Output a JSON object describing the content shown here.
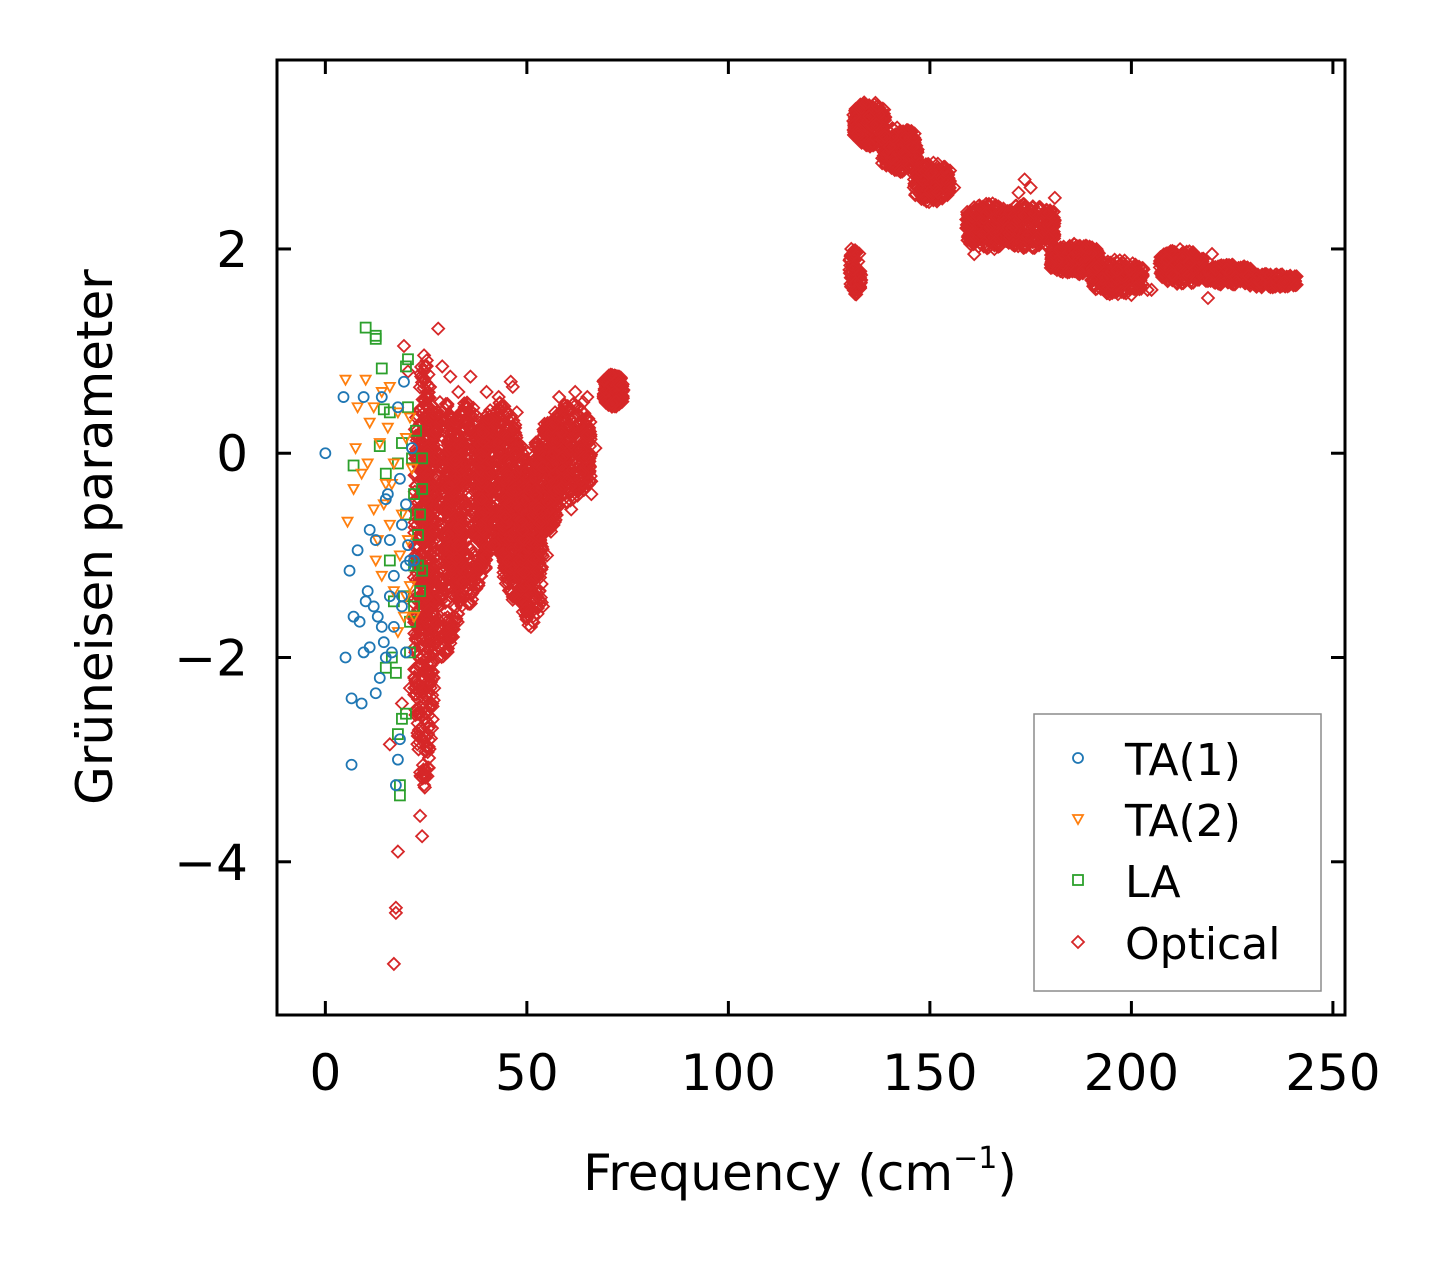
{
  "chart_data": {
    "type": "scatter",
    "title": "",
    "xlabel": "Frequency (cm",
    "xlabel_superscript": "−1",
    "xlabel_suffix": ")",
    "ylabel": "Grüneisen parameter",
    "xlim": [
      -12,
      253
    ],
    "ylim": [
      -5.5,
      3.85
    ],
    "xticks": [
      0,
      50,
      100,
      150,
      200,
      250
    ],
    "xtick_labels": [
      "0",
      "50",
      "100",
      "150",
      "200",
      "250"
    ],
    "yticks": [
      -4,
      -2,
      0,
      2
    ],
    "ytick_labels": [
      "−4",
      "−2",
      "0",
      "2"
    ],
    "grid": false,
    "legend_position": "lower right",
    "series": [
      {
        "name": "TA(1)",
        "marker": "circle",
        "color": "#1f77b4",
        "points": [
          [
            0,
            0
          ],
          [
            4.5,
            0.55
          ],
          [
            6,
            -1.15
          ],
          [
            6.5,
            -2.4
          ],
          [
            6.5,
            -3.05
          ],
          [
            7,
            -1.6
          ],
          [
            8,
            -0.95
          ],
          [
            8.5,
            -1.65
          ],
          [
            9,
            -2.45
          ],
          [
            9.5,
            0.55
          ],
          [
            9.5,
            -1.95
          ],
          [
            10,
            -1.45
          ],
          [
            10.5,
            -1.35
          ],
          [
            11,
            -1.9
          ],
          [
            11,
            -0.75
          ],
          [
            12,
            -1.5
          ],
          [
            12.5,
            -2.35
          ],
          [
            12.5,
            -0.85
          ],
          [
            13,
            -1.6
          ],
          [
            13.5,
            -2.2
          ],
          [
            14,
            -1.7
          ],
          [
            14,
            0.55
          ],
          [
            15,
            -2.0
          ],
          [
            15,
            -0.45
          ],
          [
            15.5,
            -0.4
          ],
          [
            16,
            -1.4
          ],
          [
            16,
            -0.85
          ],
          [
            17,
            -1.7
          ],
          [
            17,
            -1.2
          ],
          [
            17.5,
            -3.25
          ],
          [
            18,
            -3.0
          ],
          [
            18,
            0.45
          ],
          [
            18.5,
            -0.25
          ],
          [
            19,
            -1.4
          ],
          [
            19,
            -0.7
          ],
          [
            19.5,
            0.7
          ],
          [
            20,
            -1.1
          ],
          [
            20,
            -0.5
          ],
          [
            20.5,
            -0.9
          ],
          [
            21,
            -1.05
          ],
          [
            21.5,
            0.05
          ],
          [
            22,
            -1.05
          ],
          [
            5,
            -2.0
          ],
          [
            14.5,
            -1.85
          ],
          [
            16.5,
            -1.95
          ],
          [
            18.5,
            -2.8
          ],
          [
            19,
            -1.5
          ],
          [
            20,
            -1.95
          ]
        ]
      },
      {
        "name": "TA(2)",
        "marker": "triangle-down",
        "color": "#ff7f0e",
        "points": [
          [
            5,
            0.72
          ],
          [
            5.5,
            -0.67
          ],
          [
            7,
            -0.35
          ],
          [
            7.5,
            0.05
          ],
          [
            8,
            0.45
          ],
          [
            9,
            -0.2
          ],
          [
            10,
            0.72
          ],
          [
            10.5,
            -0.1
          ],
          [
            11,
            0.3
          ],
          [
            12,
            -0.55
          ],
          [
            12,
            0.45
          ],
          [
            13,
            -0.85
          ],
          [
            13.5,
            0.1
          ],
          [
            14,
            0.6
          ],
          [
            14,
            -1.2
          ],
          [
            15,
            -0.3
          ],
          [
            15.5,
            0.25
          ],
          [
            16,
            -0.7
          ],
          [
            16,
            0.65
          ],
          [
            17,
            -0.1
          ],
          [
            17,
            -1.35
          ],
          [
            18,
            0.4
          ],
          [
            18,
            -1.75
          ],
          [
            19,
            -0.6
          ],
          [
            19.5,
            -1.6
          ],
          [
            20,
            0.15
          ],
          [
            20,
            -1.4
          ],
          [
            21,
            -1.3
          ],
          [
            21.5,
            -0.15
          ],
          [
            22,
            -1.6
          ],
          [
            12.5,
            -1.05
          ],
          [
            14.5,
            -0.5
          ],
          [
            16.5,
            -0.3
          ],
          [
            18.5,
            -1.0
          ],
          [
            20.5,
            -0.85
          ],
          [
            21,
            0.35
          ]
        ]
      },
      {
        "name": "LA",
        "marker": "square",
        "color": "#2ca02c",
        "points": [
          [
            7,
            -0.12
          ],
          [
            10,
            1.23
          ],
          [
            12.5,
            1.15
          ],
          [
            12.5,
            1.12
          ],
          [
            13.5,
            0.07
          ],
          [
            14,
            0.83
          ],
          [
            14.5,
            0.43
          ],
          [
            15,
            -0.2
          ],
          [
            15,
            -2.1
          ],
          [
            16,
            0.4
          ],
          [
            16,
            -1.05
          ],
          [
            16.5,
            -2.0
          ],
          [
            17,
            -1.45
          ],
          [
            17.5,
            -2.15
          ],
          [
            18,
            -2.75
          ],
          [
            18.5,
            -3.25
          ],
          [
            18.5,
            -3.35
          ],
          [
            19,
            0.1
          ],
          [
            19.5,
            -1.4
          ],
          [
            20,
            0.85
          ],
          [
            20,
            -2.55
          ],
          [
            20.5,
            0.45
          ],
          [
            20.5,
            0.92
          ],
          [
            21,
            -1.65
          ],
          [
            21.5,
            -0.05
          ],
          [
            22,
            -1.5
          ],
          [
            22.5,
            0.22
          ],
          [
            23,
            -0.8
          ],
          [
            23,
            -1.1
          ],
          [
            23.5,
            -0.6
          ],
          [
            24,
            -1.15
          ],
          [
            24,
            -0.35
          ],
          [
            19,
            -2.6
          ],
          [
            21,
            -1.95
          ],
          [
            22,
            -1.1
          ],
          [
            23.5,
            -1.35
          ],
          [
            18,
            -0.1
          ],
          [
            20,
            -0.6
          ],
          [
            22,
            -0.4
          ],
          [
            24,
            -0.05
          ]
        ]
      },
      {
        "name": "Optical",
        "marker": "diamond",
        "color": "#d62728",
        "points": [],
        "clusters": [
          {
            "x": [
              22,
              27
            ],
            "y": [
              -3.3,
              1.0
            ],
            "n": 450
          },
          {
            "x": [
              24,
              34
            ],
            "y": [
              -2.0,
              0.6
            ],
            "n": 500
          },
          {
            "x": [
              30,
              40
            ],
            "y": [
              -1.5,
              0.5
            ],
            "n": 450
          },
          {
            "x": [
              38,
              48
            ],
            "y": [
              -1.0,
              0.5
            ],
            "n": 400
          },
          {
            "x": [
              44,
              52
            ],
            "y": [
              -1.5,
              0.1
            ],
            "n": 380
          },
          {
            "x": [
              48,
              54
            ],
            "y": [
              -1.7,
              -0.3
            ],
            "n": 220
          },
          {
            "x": [
              52,
              58
            ],
            "y": [
              -0.8,
              0.3
            ],
            "n": 260
          },
          {
            "x": [
              56,
              66
            ],
            "y": [
              -0.5,
              0.5
            ],
            "n": 300
          },
          {
            "x": [
              69,
              74
            ],
            "y": [
              0.45,
              0.78
            ],
            "n": 140
          },
          {
            "x": [
              130,
              133
            ],
            "y": [
              1.55,
              2.0
            ],
            "n": 80
          },
          {
            "x": [
              131,
              139
            ],
            "y": [
              3.0,
              3.45
            ],
            "n": 220
          },
          {
            "x": [
              138,
              147
            ],
            "y": [
              2.75,
              3.2
            ],
            "n": 240
          },
          {
            "x": [
              146,
              155
            ],
            "y": [
              2.45,
              2.85
            ],
            "n": 220
          },
          {
            "x": [
              159,
              170
            ],
            "y": [
              2.0,
              2.45
            ],
            "n": 240
          },
          {
            "x": [
              168,
              181
            ],
            "y": [
              2.0,
              2.45
            ],
            "n": 260
          },
          {
            "x": [
              180,
              192
            ],
            "y": [
              1.75,
              2.05
            ],
            "n": 240
          },
          {
            "x": [
              190,
              203
            ],
            "y": [
              1.55,
              1.9
            ],
            "n": 220
          },
          {
            "x": [
              207,
              218
            ],
            "y": [
              1.65,
              2.0
            ],
            "n": 260
          },
          {
            "x": [
              218,
              230
            ],
            "y": [
              1.65,
              1.85
            ],
            "n": 220
          },
          {
            "x": [
              228,
              241
            ],
            "y": [
              1.62,
              1.76
            ],
            "n": 150
          }
        ],
        "outliers": [
          [
            17,
            -5.0
          ],
          [
            17.5,
            -4.45
          ],
          [
            17.5,
            -4.5
          ],
          [
            18,
            -3.9
          ],
          [
            16,
            -2.85
          ],
          [
            19,
            -2.45
          ],
          [
            21,
            -2.3
          ],
          [
            23.5,
            -3.55
          ],
          [
            24,
            -3.75
          ],
          [
            28,
            1.22
          ],
          [
            19.5,
            1.05
          ],
          [
            20.5,
            0.8
          ],
          [
            29,
            0.85
          ],
          [
            31,
            0.75
          ],
          [
            33,
            0.6
          ],
          [
            36,
            0.75
          ],
          [
            40,
            0.6
          ],
          [
            43,
            0.55
          ],
          [
            46,
            0.7
          ],
          [
            46.5,
            0.65
          ],
          [
            47.5,
            0.4
          ],
          [
            28,
            -2.0
          ],
          [
            30,
            -1.95
          ],
          [
            27,
            -2.3
          ],
          [
            26,
            -1.8
          ],
          [
            33,
            -1.4
          ],
          [
            35,
            -1.3
          ],
          [
            38,
            -1.1
          ],
          [
            40,
            -1.0
          ],
          [
            42,
            -0.9
          ],
          [
            50,
            -1.6
          ],
          [
            51,
            -1.7
          ],
          [
            54,
            -1.5
          ],
          [
            55,
            -1.0
          ],
          [
            57,
            0.4
          ],
          [
            58,
            0.55
          ],
          [
            62,
            0.6
          ],
          [
            64,
            0.5
          ],
          [
            65,
            0.55
          ],
          [
            66,
            -0.4
          ],
          [
            61,
            -0.55
          ],
          [
            67,
            0.05
          ],
          [
            24.5,
            -3.25
          ],
          [
            25,
            -3.1
          ],
          [
            25.5,
            -2.75
          ],
          [
            130.5,
            2.0
          ],
          [
            131,
            1.8
          ],
          [
            131.5,
            1.6
          ],
          [
            133,
            3.38
          ],
          [
            134,
            3.42
          ],
          [
            137,
            3.4
          ],
          [
            140,
            3.0
          ],
          [
            152,
            2.55
          ],
          [
            156,
            2.6
          ],
          [
            160,
            2.05
          ],
          [
            161,
            1.95
          ],
          [
            164,
            2.35
          ],
          [
            166,
            2.0
          ],
          [
            173.5,
            2.68
          ],
          [
            172,
            2.55
          ],
          [
            175,
            2.6
          ],
          [
            177,
            2.4
          ],
          [
            180,
            1.85
          ],
          [
            181,
            2.5
          ],
          [
            187,
            1.9
          ],
          [
            195,
            1.65
          ],
          [
            200,
            1.55
          ],
          [
            204,
            1.6
          ],
          [
            205,
            1.6
          ],
          [
            219,
            1.52
          ],
          [
            210,
            1.75
          ],
          [
            220,
            1.95
          ],
          [
            226,
            1.68
          ],
          [
            232,
            1.68
          ],
          [
            236,
            1.7
          ],
          [
            238,
            1.68
          ],
          [
            241,
            1.65
          ]
        ]
      }
    ]
  }
}
